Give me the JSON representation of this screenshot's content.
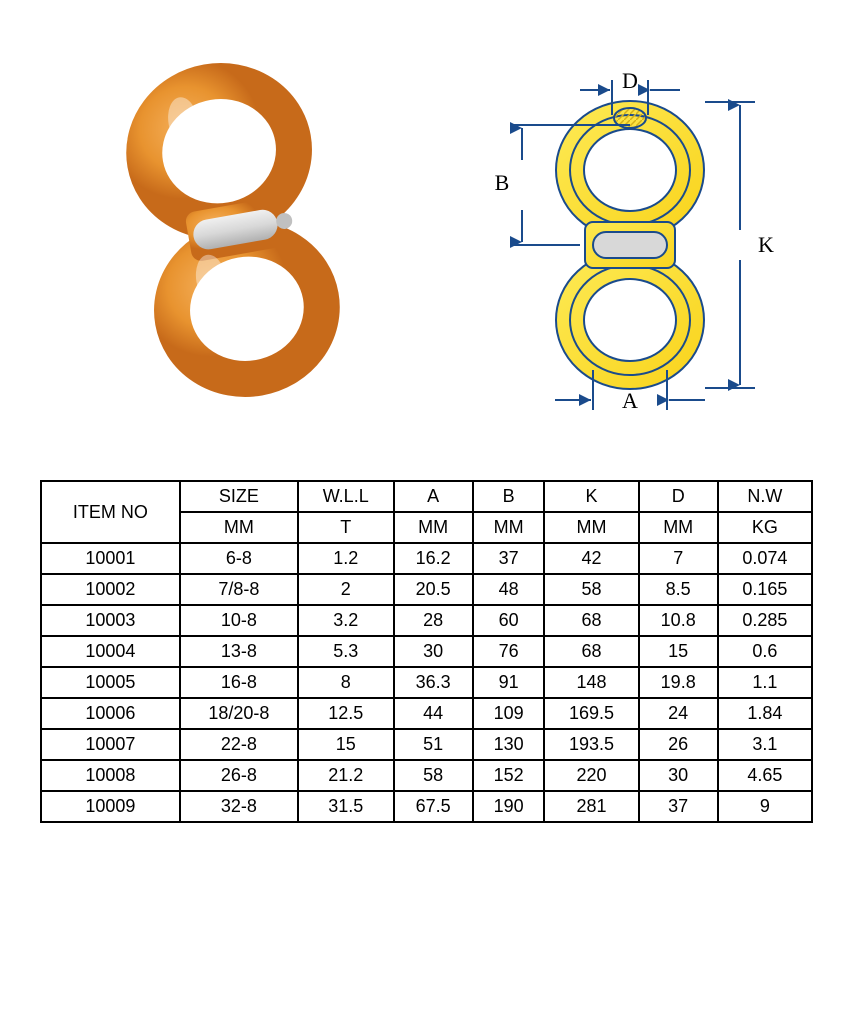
{
  "diagram": {
    "labels": {
      "D": "D",
      "B": "B",
      "K": "K",
      "A": "A"
    },
    "colors": {
      "product_orange": "#e8932f",
      "product_orange_dark": "#c76a1a",
      "diagram_yellow": "#f9d520",
      "diagram_yellow_dark": "#d4b018",
      "pin_gray": "#d8d8d8",
      "pin_gray_dark": "#b0b0b0",
      "line_blue": "#1a4b8c",
      "text_black": "#000000"
    }
  },
  "table": {
    "header_row1": [
      "ITEM NO",
      "SIZE",
      "W.L.L",
      "A",
      "B",
      "K",
      "D",
      "N.W"
    ],
    "header_row2": [
      "MM",
      "T",
      "MM",
      "MM",
      "MM",
      "MM",
      "KG"
    ],
    "rows": [
      [
        "10001",
        "6-8",
        "1.2",
        "16.2",
        "37",
        "42",
        "7",
        "0.074"
      ],
      [
        "10002",
        "7/8-8",
        "2",
        "20.5",
        "48",
        "58",
        "8.5",
        "0.165"
      ],
      [
        "10003",
        "10-8",
        "3.2",
        "28",
        "60",
        "68",
        "10.8",
        "0.285"
      ],
      [
        "10004",
        "13-8",
        "5.3",
        "30",
        "76",
        "68",
        "15",
        "0.6"
      ],
      [
        "10005",
        "16-8",
        "8",
        "36.3",
        "91",
        "148",
        "19.8",
        "1.1"
      ],
      [
        "10006",
        "18/20-8",
        "12.5",
        "44",
        "109",
        "169.5",
        "24",
        "1.84"
      ],
      [
        "10007",
        "22-8",
        "15",
        "51",
        "130",
        "193.5",
        "26",
        "3.1"
      ],
      [
        "10008",
        "26-8",
        "21.2",
        "58",
        "152",
        "220",
        "30",
        "4.65"
      ],
      [
        "10009",
        "32-8",
        "31.5",
        "67.5",
        "190",
        "281",
        "37",
        "9"
      ]
    ]
  }
}
